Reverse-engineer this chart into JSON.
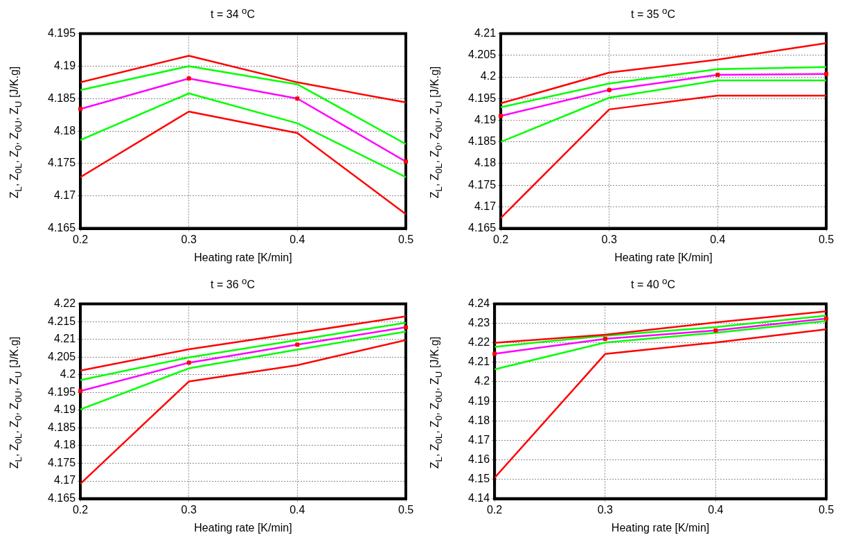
{
  "chart_data": [
    {
      "type": "line",
      "title": "t = 34 $^{o}$C",
      "xlabel": "Heating rate [K/min]",
      "ylabel": "Z$_{L}$, Z$_{0L}$, Z$_{0}$, Z$_{0U}$, Z$_{U}$ [J/K.g]",
      "x": [
        0.2,
        0.3,
        0.4,
        0.5
      ],
      "xlim": [
        0.2,
        0.5
      ],
      "xticks": [
        0.2,
        0.3,
        0.4,
        0.5
      ],
      "ylim": [
        4.165,
        4.195
      ],
      "yticks": [
        4.165,
        4.17,
        4.175,
        4.18,
        4.185,
        4.19,
        4.195
      ],
      "grid": true,
      "legend": false,
      "marker": "none",
      "line_style": "solid",
      "series": [
        {
          "color": "#ff0000",
          "values": [
            4.1875,
            4.1916,
            4.1875,
            4.1844
          ]
        },
        {
          "color": "#00ff00",
          "values": [
            4.1863,
            4.19,
            4.1872,
            4.178
          ]
        },
        {
          "color": "#ff00ff",
          "values": [
            4.1834,
            4.1881,
            4.185,
            4.1753
          ]
        },
        {
          "color": "#00ff00",
          "values": [
            4.1786,
            4.1858,
            4.1812,
            4.1729
          ]
        },
        {
          "color": "#ff0000",
          "values": [
            4.1729,
            4.183,
            4.1797,
            4.1672
          ]
        },
        {
          "type": "scatter",
          "marker": "square",
          "color": "#ff0000",
          "values": [
            4.1834,
            4.1881,
            4.185,
            4.1753
          ]
        }
      ]
    },
    {
      "type": "line",
      "title": "t = 35 $^{o}$C",
      "xlabel": "Heating rate [K/min]",
      "ylabel": "Z$_{L}$, Z$_{0L}$, Z$_{0}$, Z$_{0U}$, Z$_{U}$ [J/K.g]",
      "x": [
        0.2,
        0.3,
        0.4,
        0.5
      ],
      "xlim": [
        0.2,
        0.5
      ],
      "xticks": [
        0.2,
        0.3,
        0.4,
        0.5
      ],
      "ylim": [
        4.165,
        4.21
      ],
      "yticks": [
        4.165,
        4.17,
        4.175,
        4.18,
        4.185,
        4.19,
        4.195,
        4.2,
        4.205,
        4.21
      ],
      "grid": true,
      "legend": false,
      "marker": "none",
      "line_style": "solid",
      "series": [
        {
          "color": "#ff0000",
          "values": [
            4.1939,
            4.201,
            4.204,
            4.2078
          ]
        },
        {
          "color": "#00ff00",
          "values": [
            4.193,
            4.1985,
            4.2018,
            4.2023
          ]
        },
        {
          "color": "#ff00ff",
          "values": [
            4.191,
            4.197,
            4.2005,
            4.2007
          ]
        },
        {
          "color": "#00ff00",
          "values": [
            4.185,
            4.1952,
            4.1992,
            4.1992
          ]
        },
        {
          "color": "#ff0000",
          "values": [
            4.1674,
            4.1925,
            4.1957,
            4.1957
          ]
        },
        {
          "type": "scatter",
          "marker": "square",
          "color": "#ff0000",
          "values": [
            4.191,
            4.197,
            4.2005,
            4.2007
          ]
        }
      ]
    },
    {
      "type": "line",
      "title": "t = 36 $^{o}$C",
      "xlabel": "Heating rate [K/min]",
      "ylabel": "Z$_{L}$, Z$_{0L}$, Z$_{0}$, Z$_{0U}$, Z$_{U}$ [J/K.g]",
      "x": [
        0.2,
        0.3,
        0.4,
        0.5
      ],
      "xlim": [
        0.2,
        0.5
      ],
      "xticks": [
        0.2,
        0.3,
        0.4,
        0.5
      ],
      "ylim": [
        4.165,
        4.22
      ],
      "yticks": [
        4.165,
        4.17,
        4.175,
        4.18,
        4.185,
        4.19,
        4.195,
        4.2,
        4.205,
        4.21,
        4.215,
        4.22
      ],
      "grid": true,
      "legend": false,
      "marker": "none",
      "line_style": "solid",
      "series": [
        {
          "color": "#ff0000",
          "values": [
            4.2012,
            4.2072,
            4.2118,
            4.2165
          ]
        },
        {
          "color": "#00ff00",
          "values": [
            4.1985,
            4.2049,
            4.2098,
            4.2147
          ]
        },
        {
          "color": "#ff00ff",
          "values": [
            4.1954,
            4.2034,
            4.2085,
            4.2134
          ]
        },
        {
          "color": "#00ff00",
          "values": [
            4.1902,
            4.2018,
            4.2071,
            4.2122
          ]
        },
        {
          "color": "#ff0000",
          "values": [
            4.1692,
            4.1981,
            4.2027,
            4.2098
          ]
        },
        {
          "type": "scatter",
          "marker": "square",
          "color": "#ff0000",
          "values": [
            4.1954,
            4.2034,
            4.2085,
            4.2134
          ]
        }
      ]
    },
    {
      "type": "line",
      "title": "t = 40 $^{o}$C",
      "xlabel": "Heating rate [K/min]",
      "ylabel": "Z$_{L}$, Z$_{0L}$, Z$_{0}$, Z$_{0U}$, Z$_{U}$ [J/K.g]",
      "x": [
        0.2,
        0.3,
        0.4,
        0.5
      ],
      "xlim": [
        0.2,
        0.5
      ],
      "xticks": [
        0.2,
        0.3,
        0.4,
        0.5
      ],
      "ylim": [
        4.14,
        4.24
      ],
      "yticks": [
        4.14,
        4.15,
        4.16,
        4.17,
        4.18,
        4.19,
        4.2,
        4.21,
        4.22,
        4.23,
        4.24
      ],
      "grid": true,
      "legend": false,
      "marker": "none",
      "line_style": "solid",
      "series": [
        {
          "color": "#ff0000",
          "values": [
            4.22,
            4.2242,
            4.2305,
            4.2362
          ]
        },
        {
          "color": "#00ff00",
          "values": [
            4.218,
            4.2237,
            4.2281,
            4.234
          ]
        },
        {
          "color": "#ff00ff",
          "values": [
            4.2144,
            4.2221,
            4.2264,
            4.2325
          ]
        },
        {
          "color": "#00ff00",
          "values": [
            4.2064,
            4.2202,
            4.2252,
            4.2312
          ]
        },
        {
          "color": "#ff0000",
          "values": [
            4.1507,
            4.2143,
            4.2202,
            4.227
          ]
        },
        {
          "type": "scatter",
          "marker": "square",
          "color": "#ff0000",
          "values": [
            4.2144,
            4.2221,
            4.2264,
            4.2325
          ]
        }
      ]
    }
  ]
}
